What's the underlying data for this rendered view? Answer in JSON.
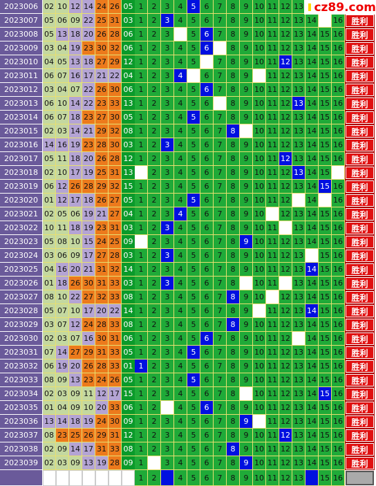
{
  "logo": "cz89.com",
  "row_button": "胜利",
  "rows": [
    {
      "issue": "2023006",
      "reds": [
        "02",
        "10",
        "12",
        "14",
        "24",
        "26"
      ],
      "blue": "05",
      "cells": [
        "1",
        "2",
        "3",
        "4",
        "5",
        "6",
        "7",
        "8",
        "9",
        "10",
        "11",
        "12",
        "13",
        null,
        null,
        null
      ]
    },
    {
      "issue": "2023007",
      "reds": [
        "05",
        "06",
        "09",
        "22",
        "25",
        "31"
      ],
      "blue": "03",
      "cells": [
        "1",
        "2",
        "3",
        "4",
        "5",
        "6",
        "7",
        "8",
        "9",
        "10",
        "11",
        "12",
        "13",
        "14",
        null,
        "16"
      ]
    },
    {
      "issue": "2023008",
      "reds": [
        "05",
        "13",
        "18",
        "20",
        "26",
        "28"
      ],
      "blue": "06",
      "cells": [
        "1",
        "2",
        "3",
        null,
        "5",
        "6",
        "7",
        "8",
        "9",
        "10",
        "11",
        "12",
        "13",
        "14",
        "15",
        "16"
      ]
    },
    {
      "issue": "2023009",
      "reds": [
        "03",
        "04",
        "19",
        "23",
        "30",
        "32"
      ],
      "blue": "06",
      "cells": [
        "1",
        "2",
        "3",
        "4",
        "5",
        "6",
        null,
        "8",
        "9",
        "10",
        "11",
        "12",
        "13",
        "14",
        "15",
        "16"
      ]
    },
    {
      "issue": "2023010",
      "reds": [
        "04",
        "05",
        "13",
        "18",
        "27",
        "29"
      ],
      "blue": "12",
      "cells": [
        "1",
        "2",
        "3",
        "4",
        "5",
        null,
        "7",
        "8",
        "9",
        "10",
        "11",
        "12",
        "13",
        "14",
        "15",
        "16"
      ]
    },
    {
      "issue": "2023011",
      "reds": [
        "06",
        "07",
        "16",
        "17",
        "21",
        "22"
      ],
      "blue": "04",
      "cells": [
        "1",
        "2",
        "3",
        "4",
        null,
        "6",
        "7",
        "8",
        "9",
        null,
        "11",
        "12",
        "13",
        "14",
        "15",
        "16"
      ]
    },
    {
      "issue": "2023012",
      "reds": [
        "03",
        "04",
        "07",
        "22",
        "26",
        "30"
      ],
      "blue": "06",
      "cells": [
        "1",
        "2",
        "3",
        "4",
        "5",
        "6",
        "7",
        "8",
        "9",
        "10",
        "11",
        "12",
        "13",
        "14",
        "15",
        "16"
      ]
    },
    {
      "issue": "2023013",
      "reds": [
        "06",
        "10",
        "14",
        "22",
        "23",
        "33"
      ],
      "blue": "13",
      "cells": [
        "1",
        "2",
        "3",
        "4",
        "5",
        "6",
        null,
        "8",
        "9",
        "10",
        "11",
        "12",
        "13",
        "14",
        "15",
        "16"
      ]
    },
    {
      "issue": "2023014",
      "reds": [
        "06",
        "07",
        "18",
        "23",
        "27",
        "30"
      ],
      "blue": "05",
      "cells": [
        "1",
        "2",
        "3",
        "4",
        "5",
        "6",
        "7",
        "8",
        "9",
        "10",
        "11",
        "12",
        "13",
        "14",
        "15",
        "16"
      ]
    },
    {
      "issue": "2023015",
      "reds": [
        "02",
        "03",
        "14",
        "21",
        "29",
        "32"
      ],
      "blue": "08",
      "cells": [
        "1",
        "2",
        "3",
        "4",
        "5",
        "6",
        "7",
        "8",
        null,
        "10",
        "11",
        "12",
        "13",
        "14",
        "15",
        "16"
      ]
    },
    {
      "issue": "2023016",
      "reds": [
        "14",
        "16",
        "19",
        "23",
        "28",
        "30"
      ],
      "blue": "03",
      "cells": [
        "1",
        "2",
        "3",
        "4",
        "5",
        "6",
        "7",
        "8",
        "9",
        "10",
        "11",
        "12",
        "13",
        "14",
        "15",
        "16"
      ]
    },
    {
      "issue": "2023017",
      "reds": [
        "05",
        "11",
        "18",
        "20",
        "26",
        "28"
      ],
      "blue": "12",
      "cells": [
        "1",
        "2",
        "3",
        "4",
        "5",
        "6",
        "7",
        "8",
        "9",
        "10",
        "11",
        "12",
        "13",
        "14",
        "15",
        "16"
      ]
    },
    {
      "issue": "2023018",
      "reds": [
        "02",
        "10",
        "17",
        "19",
        "25",
        "31"
      ],
      "blue": "13",
      "cells": [
        null,
        "2",
        "3",
        "4",
        "5",
        "6",
        "7",
        "8",
        "9",
        "10",
        "11",
        "12",
        "13",
        "14",
        "15",
        null
      ]
    },
    {
      "issue": "2023019",
      "reds": [
        "06",
        "12",
        "26",
        "28",
        "29",
        "32"
      ],
      "blue": "15",
      "cells": [
        "1",
        "2",
        "3",
        "4",
        "5",
        "6",
        "7",
        "8",
        "9",
        "10",
        "11",
        "12",
        "13",
        "14",
        "15",
        "16"
      ]
    },
    {
      "issue": "2023020",
      "reds": [
        "01",
        "12",
        "17",
        "18",
        "26",
        "27"
      ],
      "blue": "05",
      "cells": [
        "1",
        "2",
        "3",
        "4",
        "5",
        "6",
        "7",
        "8",
        "9",
        "10",
        "11",
        "12",
        null,
        "14",
        null,
        "16"
      ]
    },
    {
      "issue": "2023021",
      "reds": [
        "02",
        "05",
        "06",
        "19",
        "21",
        "27"
      ],
      "blue": "04",
      "cells": [
        "1",
        "2",
        "3",
        "4",
        "5",
        "6",
        "7",
        "8",
        "9",
        "10",
        null,
        "12",
        "13",
        "14",
        "15",
        "16"
      ]
    },
    {
      "issue": "2023022",
      "reds": [
        "10",
        "11",
        "18",
        "19",
        "23",
        "31"
      ],
      "blue": "03",
      "cells": [
        "1",
        "2",
        "3",
        "4",
        "5",
        "6",
        "7",
        "8",
        "9",
        "10",
        "11",
        null,
        "13",
        "14",
        "15",
        "16"
      ]
    },
    {
      "issue": "2023023",
      "reds": [
        "05",
        "08",
        "10",
        "15",
        "24",
        "25"
      ],
      "blue": "09",
      "cells": [
        null,
        "2",
        "3",
        "4",
        "5",
        "6",
        "7",
        "8",
        "9",
        "10",
        "11",
        "12",
        "13",
        "14",
        "15",
        "16"
      ]
    },
    {
      "issue": "2023024",
      "reds": [
        "03",
        "06",
        "09",
        "17",
        "27",
        "28"
      ],
      "blue": "03",
      "cells": [
        "1",
        "2",
        "3",
        "4",
        "5",
        "6",
        "7",
        "8",
        "9",
        "10",
        "11",
        "12",
        "13",
        null,
        "15",
        "16"
      ]
    },
    {
      "issue": "2023025",
      "reds": [
        "04",
        "16",
        "20",
        "21",
        "31",
        "32"
      ],
      "blue": "14",
      "cells": [
        "1",
        "2",
        "3",
        "4",
        "5",
        "6",
        "7",
        "8",
        "9",
        "10",
        "11",
        "12",
        "13",
        "14",
        "15",
        "16"
      ]
    },
    {
      "issue": "2023026",
      "reds": [
        "01",
        "18",
        "26",
        "30",
        "31",
        "33"
      ],
      "blue": "03",
      "cells": [
        "1",
        "2",
        "3",
        "4",
        "5",
        "6",
        "7",
        "8",
        null,
        "10",
        "11",
        null,
        "13",
        "14",
        "15",
        "16"
      ]
    },
    {
      "issue": "2023027",
      "reds": [
        "08",
        "10",
        "22",
        "27",
        "32",
        "33"
      ],
      "blue": "08",
      "cells": [
        "1",
        "2",
        "3",
        "4",
        "5",
        "6",
        "7",
        "8",
        "9",
        "10",
        null,
        "12",
        "13",
        "14",
        "15",
        "16"
      ]
    },
    {
      "issue": "2023028",
      "reds": [
        "05",
        "07",
        "10",
        "17",
        "20",
        "22"
      ],
      "blue": "14",
      "cells": [
        "1",
        "2",
        "3",
        "4",
        "5",
        "6",
        "7",
        "8",
        "9",
        null,
        "11",
        "12",
        "13",
        "14",
        "15",
        "16"
      ]
    },
    {
      "issue": "2023029",
      "reds": [
        "03",
        "07",
        "12",
        "24",
        "28",
        "33"
      ],
      "blue": "08",
      "cells": [
        "1",
        "2",
        "3",
        "4",
        "5",
        "6",
        "7",
        "8",
        "9",
        "10",
        "11",
        "12",
        "13",
        "14",
        "15",
        "16"
      ]
    },
    {
      "issue": "2023030",
      "reds": [
        "02",
        "03",
        "07",
        "16",
        "30",
        "31"
      ],
      "blue": "06",
      "cells": [
        "1",
        "2",
        "3",
        "4",
        "5",
        "6",
        "7",
        "8",
        "9",
        "10",
        "11",
        "12",
        null,
        "14",
        "15",
        "16"
      ]
    },
    {
      "issue": "2023031",
      "reds": [
        "07",
        "14",
        "27",
        "29",
        "31",
        "33"
      ],
      "blue": "05",
      "cells": [
        "1",
        "2",
        "3",
        "4",
        "5",
        "6",
        "7",
        "8",
        "9",
        "10",
        "11",
        "12",
        "13",
        "14",
        "15",
        "16"
      ]
    },
    {
      "issue": "2023032",
      "reds": [
        "06",
        "19",
        "20",
        "26",
        "28",
        "33"
      ],
      "blue": "01",
      "cells": [
        "1",
        "2",
        "3",
        "4",
        "5",
        "6",
        "7",
        "8",
        "9",
        "10",
        "11",
        "12",
        "13",
        "14",
        "15",
        "16"
      ]
    },
    {
      "issue": "2023033",
      "reds": [
        "08",
        "09",
        "13",
        "23",
        "24",
        "26"
      ],
      "blue": "05",
      "cells": [
        "1",
        "2",
        "3",
        "4",
        "5",
        "6",
        "7",
        "8",
        "9",
        "10",
        "11",
        "12",
        "13",
        "14",
        "15",
        "16"
      ]
    },
    {
      "issue": "2023034",
      "reds": [
        "02",
        "03",
        "09",
        "11",
        "12",
        "17"
      ],
      "blue": "15",
      "cells": [
        "1",
        "2",
        "3",
        "4",
        "5",
        "6",
        "7",
        "8",
        null,
        "10",
        "11",
        "12",
        "13",
        "14",
        "15",
        "16"
      ]
    },
    {
      "issue": "2023035",
      "reds": [
        "01",
        "04",
        "09",
        "10",
        "20",
        "33"
      ],
      "blue": "06",
      "cells": [
        "1",
        "2",
        null,
        "4",
        "5",
        "6",
        "7",
        "8",
        "9",
        "10",
        "11",
        "12",
        "13",
        "14",
        "15",
        "16"
      ]
    },
    {
      "issue": "2023036",
      "reds": [
        "13",
        "14",
        "18",
        "19",
        "24",
        "30"
      ],
      "blue": "09",
      "cells": [
        "1",
        "2",
        "3",
        "4",
        "5",
        "6",
        "7",
        "8",
        "9",
        null,
        "11",
        "12",
        "13",
        "14",
        "15",
        "16"
      ]
    },
    {
      "issue": "2023037",
      "reds": [
        "08",
        "23",
        "25",
        "26",
        "29",
        "31"
      ],
      "blue": "12",
      "cells": [
        "1",
        "2",
        "3",
        "4",
        "5",
        "6",
        "7",
        "8",
        "9",
        "10",
        "11",
        "12",
        "13",
        "14",
        "15",
        "16"
      ]
    },
    {
      "issue": "2023038",
      "reds": [
        "02",
        "09",
        "14",
        "17",
        "31",
        "33"
      ],
      "blue": "08",
      "cells": [
        "1",
        "2",
        "3",
        "4",
        "5",
        "6",
        "7",
        "8",
        "9",
        "10",
        "11",
        "12",
        "13",
        "14",
        "15",
        "16"
      ]
    },
    {
      "issue": "2023039",
      "reds": [
        "02",
        "03",
        "09",
        "13",
        "19",
        "28"
      ],
      "blue": "09",
      "cells": [
        "1",
        null,
        "3",
        "4",
        "5",
        "6",
        "7",
        "8",
        "9",
        "10",
        "11",
        "12",
        "13",
        "14",
        "15",
        "16"
      ]
    }
  ],
  "footer_cells": [
    "1",
    "2",
    null,
    "4",
    "5",
    "6",
    "7",
    "8",
    "9",
    "10",
    "11",
    "12",
    "13",
    null,
    "15",
    "16"
  ]
}
